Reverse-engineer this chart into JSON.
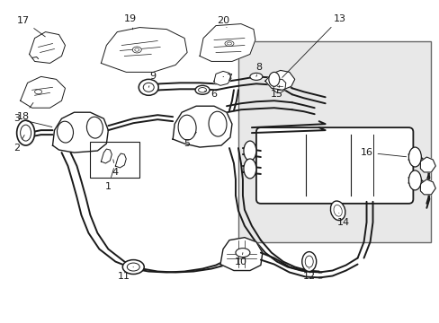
{
  "bg_color": "#ffffff",
  "line_color": "#000000",
  "box_bg": "#e8e8e8",
  "fig_width": 4.89,
  "fig_height": 3.6,
  "dpi": 100
}
